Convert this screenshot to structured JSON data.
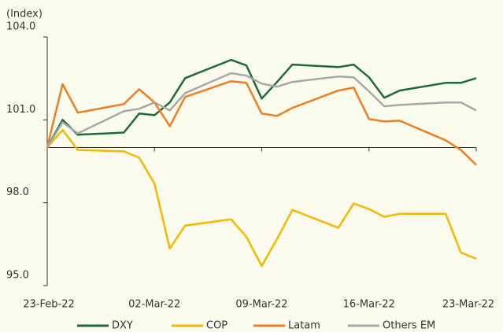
{
  "chart_data": {
    "type": "line",
    "y_label": "(Index)",
    "x": [
      "23-Feb-22",
      "24-Feb-22",
      "25-Feb-22",
      "28-Feb-22",
      "01-Mar-22",
      "02-Mar-22",
      "03-Mar-22",
      "04-Mar-22",
      "07-Mar-22",
      "08-Mar-22",
      "09-Mar-22",
      "10-Mar-22",
      "11-Mar-22",
      "14-Mar-22",
      "15-Mar-22",
      "16-Mar-22",
      "17-Mar-22",
      "18-Mar-22",
      "21-Mar-22",
      "22-Mar-22",
      "23-Mar-22"
    ],
    "series": [
      {
        "name": "DXY",
        "color": "#1e6b3a",
        "values": [
          100.0,
          101.0,
          100.46,
          100.54,
          101.23,
          101.17,
          101.63,
          102.51,
          103.17,
          102.97,
          101.77,
          102.37,
          103.0,
          102.91,
          103.0,
          102.54,
          101.8,
          102.06,
          102.34,
          102.34,
          102.51
        ]
      },
      {
        "name": "COP",
        "color": "#f5b800",
        "values": [
          100.0,
          100.63,
          99.91,
          99.86,
          99.63,
          98.69,
          96.34,
          97.17,
          97.4,
          96.77,
          95.71,
          96.69,
          97.74,
          97.09,
          97.97,
          97.77,
          97.49,
          97.6,
          97.6,
          96.2,
          95.97
        ]
      },
      {
        "name": "Latam",
        "color": "#ef7d22",
        "values": [
          100.0,
          102.29,
          101.26,
          101.57,
          102.11,
          101.63,
          100.77,
          101.83,
          102.4,
          102.34,
          101.23,
          101.14,
          101.43,
          102.06,
          102.17,
          101.03,
          100.94,
          100.97,
          100.26,
          99.91,
          99.37
        ]
      },
      {
        "name": "Others EM",
        "color": "#a8a8a8",
        "values": [
          100.0,
          100.91,
          100.51,
          101.31,
          101.4,
          101.63,
          101.34,
          101.97,
          102.69,
          102.6,
          102.31,
          102.2,
          102.37,
          102.57,
          102.54,
          102.03,
          101.49,
          101.54,
          101.63,
          101.63,
          101.34
        ]
      }
    ],
    "xticks": [
      "23-Feb-22",
      "02-Mar-22",
      "09-Mar-22",
      "16-Mar-22",
      "23-Mar-22"
    ],
    "ylim": [
      95,
      104
    ],
    "yticks": [
      {
        "value": 95,
        "label": "95.0"
      },
      {
        "value": 98,
        "label": "98.0"
      },
      {
        "value": 101,
        "label": "101.0"
      },
      {
        "value": 104,
        "label": "104.0"
      }
    ],
    "x_axis_crossing": 100,
    "legend": "bottom"
  }
}
